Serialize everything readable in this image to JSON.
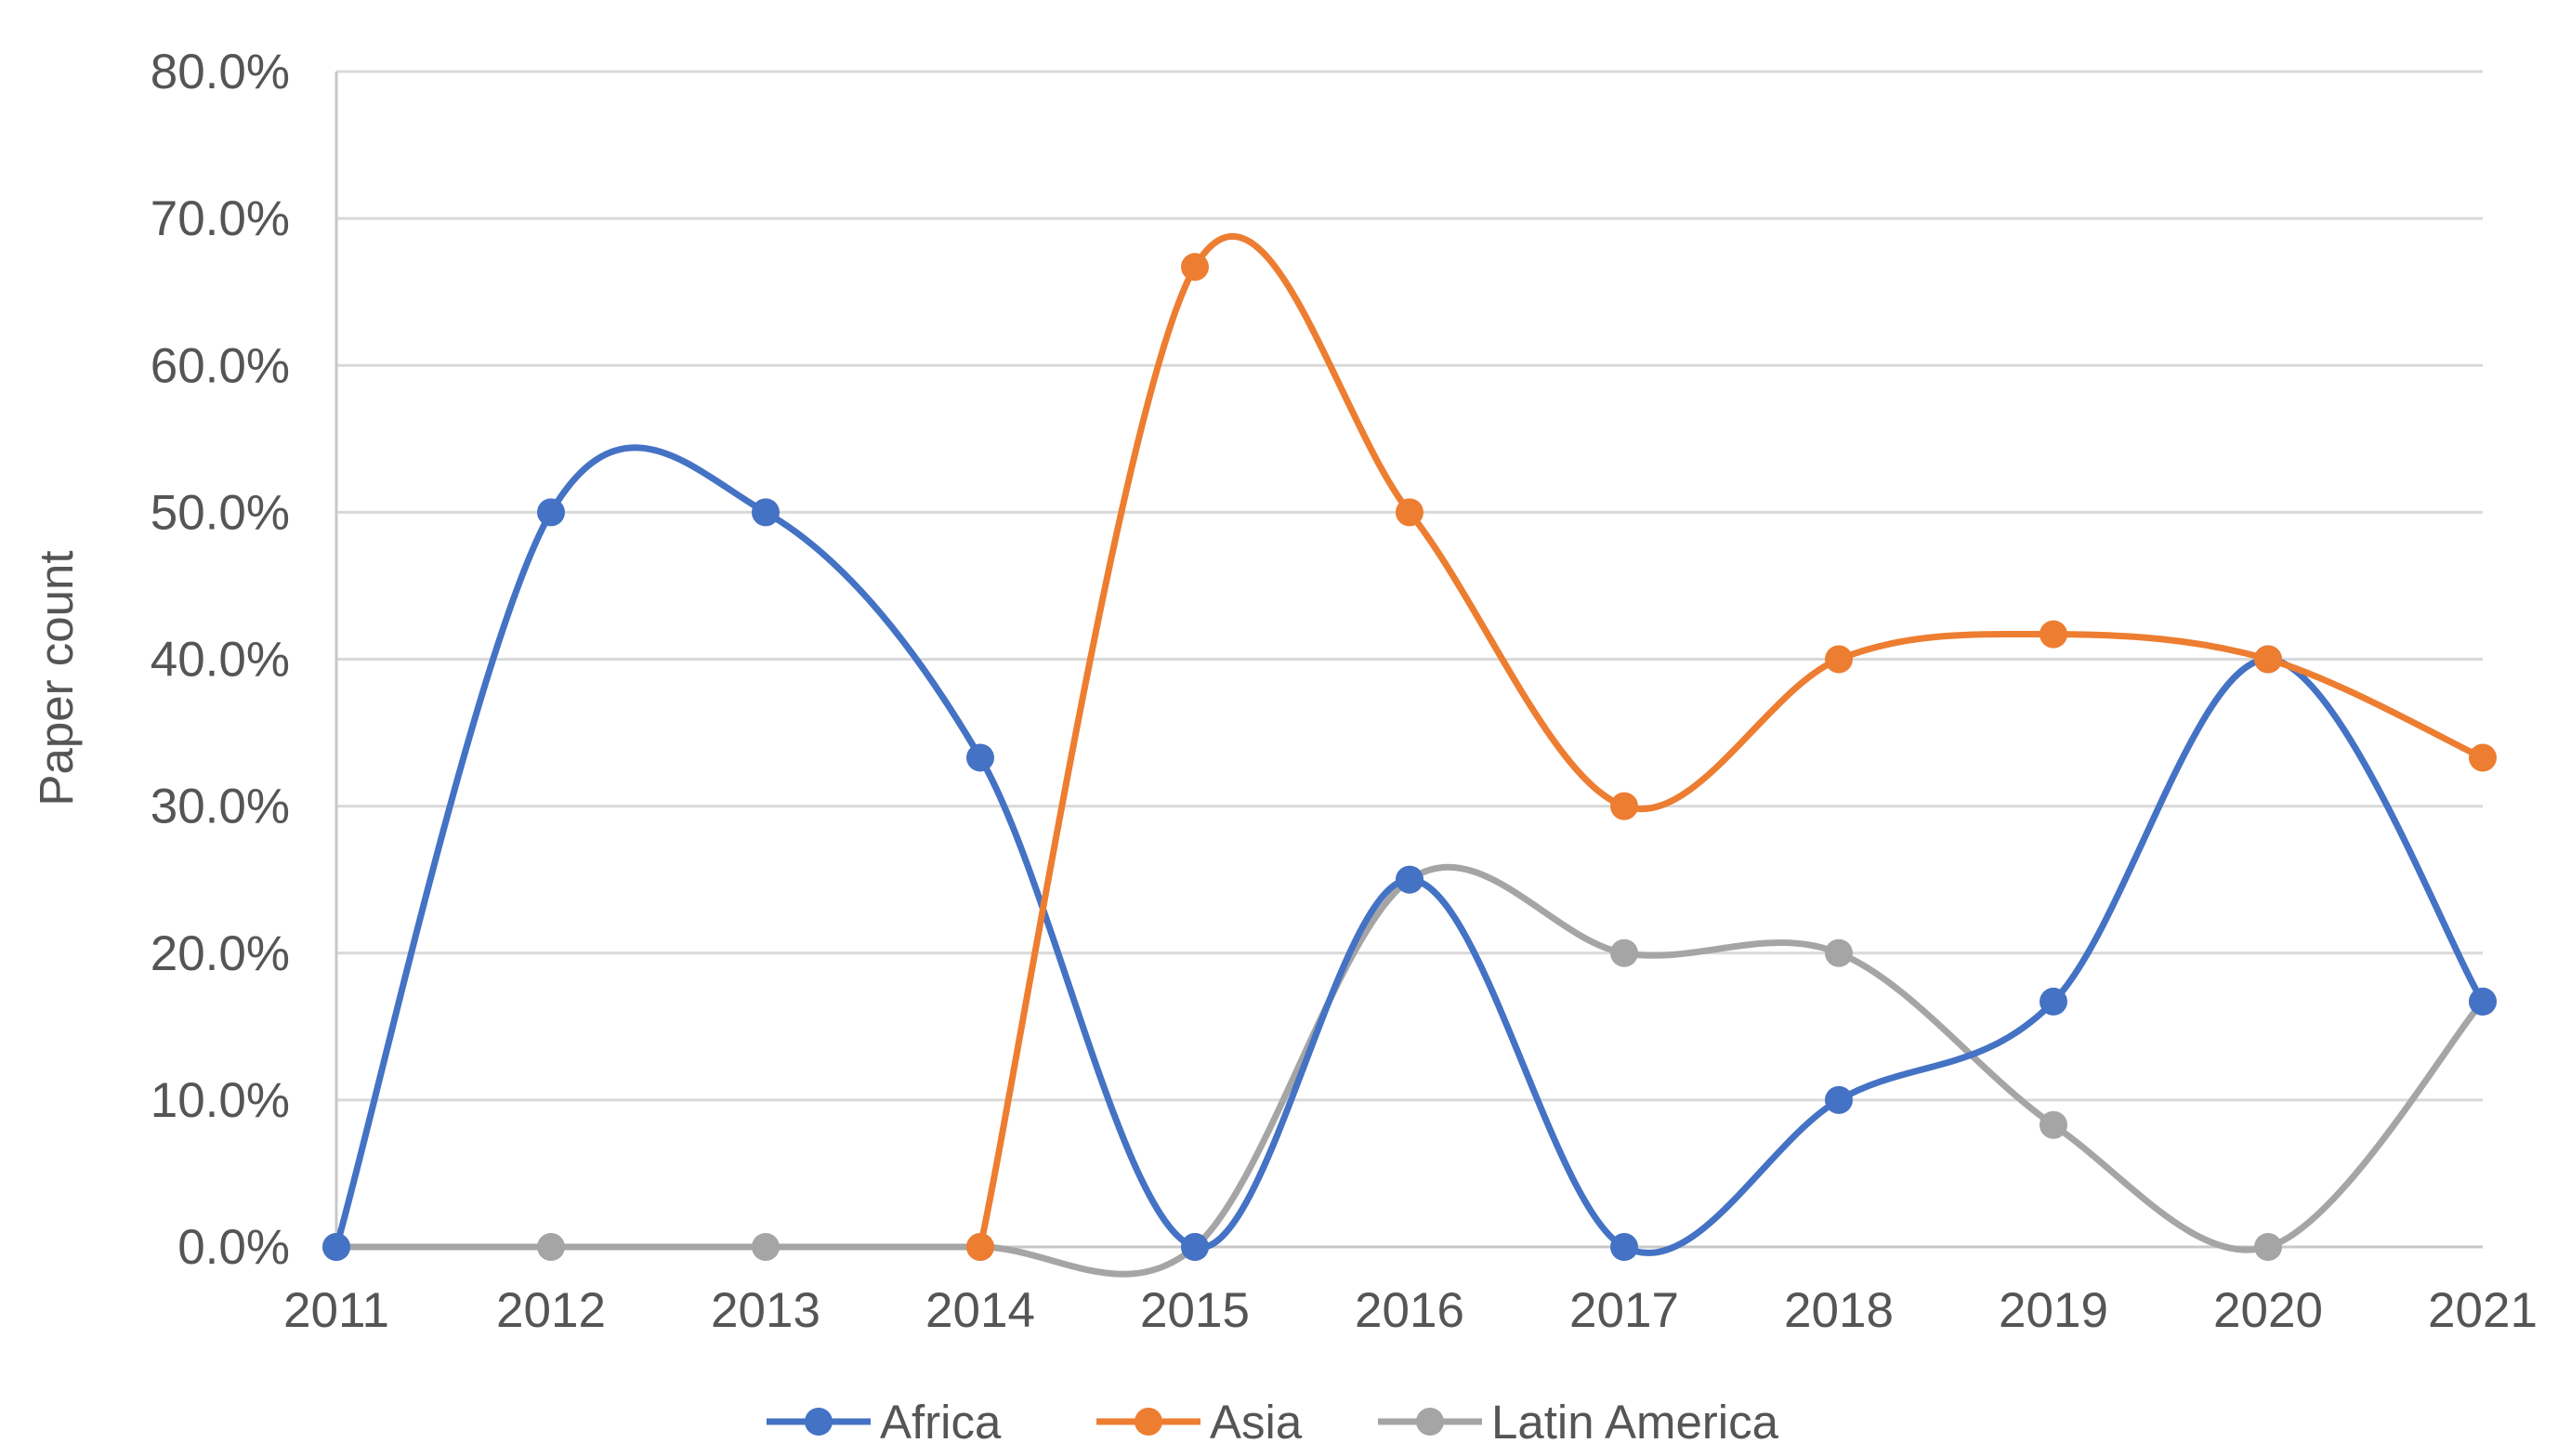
{
  "chart_data": {
    "type": "line",
    "title": "",
    "xlabel": "",
    "ylabel": "Paper count",
    "categories": [
      "2011",
      "2012",
      "2013",
      "2014",
      "2015",
      "2016",
      "2017",
      "2018",
      "2019",
      "2020",
      "2021"
    ],
    "y_ticks": [
      "0.0%",
      "10.0%",
      "20.0%",
      "30.0%",
      "40.0%",
      "50.0%",
      "60.0%",
      "70.0%",
      "80.0%"
    ],
    "ylim": [
      0,
      80
    ],
    "smooth": true,
    "grid": true,
    "legend_position": "bottom",
    "series": [
      {
        "name": "Africa",
        "color": "#4472c4",
        "values": [
          0,
          50,
          50,
          33.3,
          0,
          25,
          0,
          10,
          16.7,
          40,
          16.7
        ]
      },
      {
        "name": "Asia",
        "color": "#ed7d31",
        "values": [
          null,
          null,
          null,
          0,
          66.7,
          50,
          30,
          40,
          41.7,
          40,
          33.3
        ]
      },
      {
        "name": "Latin America",
        "color": "#a5a5a5",
        "values": [
          0,
          0,
          0,
          0,
          0,
          25,
          20,
          20,
          8.3,
          0,
          16.7
        ]
      }
    ]
  }
}
